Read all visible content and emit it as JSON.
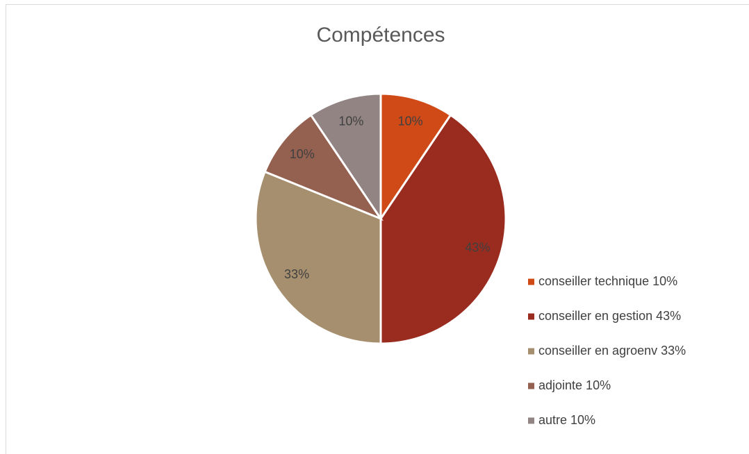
{
  "chart_data": {
    "type": "pie",
    "title": "Compétences",
    "categories": [
      "conseiller technique 10%",
      "conseiller en gestion 43%",
      "conseiller en agroenv 33%",
      "adjointe 10%",
      "autre 10%"
    ],
    "values": [
      10,
      43,
      33,
      10,
      10
    ],
    "value_labels": [
      "10%",
      "43%",
      "33%",
      "10%",
      "10%"
    ],
    "colors": [
      "#d04a17",
      "#9a2c1f",
      "#a68f6e",
      "#94604f",
      "#918483"
    ],
    "legend": "right"
  }
}
